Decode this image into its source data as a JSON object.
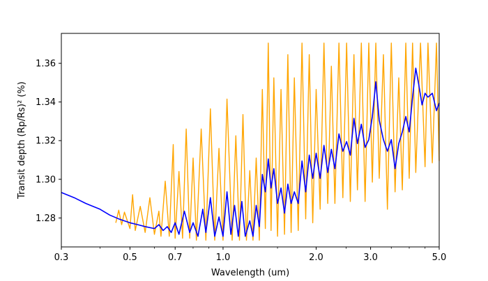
{
  "chart_data": {
    "type": "line",
    "xlabel": "Wavelength (um)",
    "ylabel": "Transit depth (Rp/Rs)² (%)",
    "xscale": "log",
    "xlim": [
      0.3,
      5.0
    ],
    "ylim": [
      1.265,
      1.3755
    ],
    "x_ticks": [
      0.3,
      0.5,
      0.7,
      1.0,
      2.0,
      3.0,
      5.0
    ],
    "x_tick_labels": [
      "0.3",
      "0.5",
      "0.7",
      "1.0",
      "2.0",
      "3.0",
      "5.0"
    ],
    "y_ticks": [
      1.28,
      1.3,
      1.32,
      1.34,
      1.36
    ],
    "y_tick_labels": [
      "1.28",
      "1.30",
      "1.32",
      "1.34",
      "1.36"
    ],
    "grid": false,
    "series": [
      {
        "color": "#ffa500",
        "points": [
          [
            0.45,
            1.2775
          ],
          [
            0.46,
            1.284
          ],
          [
            0.47,
            1.2765
          ],
          [
            0.48,
            1.283
          ],
          [
            0.5,
            1.2745
          ],
          [
            0.51,
            1.292
          ],
          [
            0.52,
            1.2735
          ],
          [
            0.54,
            1.286
          ],
          [
            0.56,
            1.2725
          ],
          [
            0.58,
            1.2905
          ],
          [
            0.6,
            1.2715
          ],
          [
            0.62,
            1.2835
          ],
          [
            0.63,
            1.2705
          ],
          [
            0.65,
            1.299
          ],
          [
            0.67,
            1.2705
          ],
          [
            0.69,
            1.318
          ],
          [
            0.7,
            1.2695
          ],
          [
            0.72,
            1.304
          ],
          [
            0.74,
            1.2695
          ],
          [
            0.76,
            1.326
          ],
          [
            0.78,
            1.2695
          ],
          [
            0.8,
            1.311
          ],
          [
            0.82,
            1.2685
          ],
          [
            0.85,
            1.326
          ],
          [
            0.88,
            1.2685
          ],
          [
            0.91,
            1.3365
          ],
          [
            0.94,
            1.2685
          ],
          [
            0.97,
            1.316
          ],
          [
            1.0,
            1.2685
          ],
          [
            1.03,
            1.3415
          ],
          [
            1.07,
            1.2685
          ],
          [
            1.1,
            1.3225
          ],
          [
            1.13,
            1.2685
          ],
          [
            1.16,
            1.3335
          ],
          [
            1.19,
            1.2685
          ],
          [
            1.22,
            1.3045
          ],
          [
            1.25,
            1.2685
          ],
          [
            1.28,
            1.311
          ],
          [
            1.31,
            1.2685
          ],
          [
            1.34,
            1.3465
          ],
          [
            1.37,
            1.2745
          ],
          [
            1.4,
            1.3705
          ],
          [
            1.43,
            1.2735
          ],
          [
            1.46,
            1.3525
          ],
          [
            1.5,
            1.2705
          ],
          [
            1.54,
            1.3465
          ],
          [
            1.58,
            1.2715
          ],
          [
            1.62,
            1.3645
          ],
          [
            1.66,
            1.2725
          ],
          [
            1.7,
            1.3525
          ],
          [
            1.75,
            1.2735
          ],
          [
            1.8,
            1.3705
          ],
          [
            1.85,
            1.2795
          ],
          [
            1.9,
            1.3645
          ],
          [
            1.95,
            1.2775
          ],
          [
            2.0,
            1.3465
          ],
          [
            2.06,
            1.2845
          ],
          [
            2.12,
            1.3705
          ],
          [
            2.18,
            1.2875
          ],
          [
            2.24,
            1.3585
          ],
          [
            2.3,
            1.2875
          ],
          [
            2.37,
            1.3705
          ],
          [
            2.44,
            1.2905
          ],
          [
            2.51,
            1.3705
          ],
          [
            2.58,
            1.2885
          ],
          [
            2.65,
            1.3645
          ],
          [
            2.72,
            1.2945
          ],
          [
            2.8,
            1.3705
          ],
          [
            2.88,
            1.2885
          ],
          [
            2.96,
            1.3705
          ],
          [
            3.04,
            1.2985
          ],
          [
            3.12,
            1.3705
          ],
          [
            3.2,
            1.3005
          ],
          [
            3.3,
            1.3645
          ],
          [
            3.4,
            1.2845
          ],
          [
            3.5,
            1.3705
          ],
          [
            3.6,
            1.2935
          ],
          [
            3.7,
            1.3525
          ],
          [
            3.8,
            1.2945
          ],
          [
            3.9,
            1.3705
          ],
          [
            4.0,
            1.3005
          ],
          [
            4.1,
            1.3705
          ],
          [
            4.2,
            1.3035
          ],
          [
            4.35,
            1.3705
          ],
          [
            4.5,
            1.3065
          ],
          [
            4.6,
            1.3705
          ],
          [
            4.75,
            1.3085
          ],
          [
            4.9,
            1.3705
          ],
          [
            5.0,
            1.3095
          ]
        ]
      },
      {
        "color": "#0000ff",
        "points": [
          [
            0.3,
            1.2932
          ],
          [
            0.33,
            1.2905
          ],
          [
            0.36,
            1.2875
          ],
          [
            0.4,
            1.2845
          ],
          [
            0.43,
            1.2815
          ],
          [
            0.46,
            1.2795
          ],
          [
            0.5,
            1.2775
          ],
          [
            0.53,
            1.2765
          ],
          [
            0.56,
            1.2755
          ],
          [
            0.6,
            1.2745
          ],
          [
            0.62,
            1.2765
          ],
          [
            0.64,
            1.2735
          ],
          [
            0.66,
            1.2755
          ],
          [
            0.68,
            1.2725
          ],
          [
            0.7,
            1.2775
          ],
          [
            0.72,
            1.2715
          ],
          [
            0.75,
            1.2835
          ],
          [
            0.78,
            1.2725
          ],
          [
            0.8,
            1.2775
          ],
          [
            0.83,
            1.2705
          ],
          [
            0.86,
            1.2845
          ],
          [
            0.88,
            1.2725
          ],
          [
            0.91,
            1.2905
          ],
          [
            0.94,
            1.2705
          ],
          [
            0.97,
            1.2805
          ],
          [
            1.0,
            1.2705
          ],
          [
            1.03,
            1.2935
          ],
          [
            1.06,
            1.2715
          ],
          [
            1.09,
            1.2865
          ],
          [
            1.12,
            1.2705
          ],
          [
            1.15,
            1.2885
          ],
          [
            1.18,
            1.2705
          ],
          [
            1.22,
            1.2785
          ],
          [
            1.25,
            1.2705
          ],
          [
            1.28,
            1.2865
          ],
          [
            1.31,
            1.2755
          ],
          [
            1.34,
            1.3025
          ],
          [
            1.37,
            1.2935
          ],
          [
            1.4,
            1.3105
          ],
          [
            1.43,
            1.2955
          ],
          [
            1.46,
            1.3055
          ],
          [
            1.5,
            1.2875
          ],
          [
            1.54,
            1.2955
          ],
          [
            1.58,
            1.2825
          ],
          [
            1.62,
            1.2975
          ],
          [
            1.66,
            1.2875
          ],
          [
            1.7,
            1.2935
          ],
          [
            1.75,
            1.2875
          ],
          [
            1.8,
            1.3095
          ],
          [
            1.85,
            1.2935
          ],
          [
            1.9,
            1.3125
          ],
          [
            1.95,
            1.3005
          ],
          [
            2.0,
            1.3135
          ],
          [
            2.06,
            1.3005
          ],
          [
            2.12,
            1.3175
          ],
          [
            2.18,
            1.3035
          ],
          [
            2.24,
            1.3155
          ],
          [
            2.3,
            1.3055
          ],
          [
            2.37,
            1.3235
          ],
          [
            2.44,
            1.3145
          ],
          [
            2.51,
            1.3195
          ],
          [
            2.58,
            1.3125
          ],
          [
            2.65,
            1.3315
          ],
          [
            2.72,
            1.3185
          ],
          [
            2.8,
            1.3285
          ],
          [
            2.88,
            1.3165
          ],
          [
            2.96,
            1.3205
          ],
          [
            3.04,
            1.3325
          ],
          [
            3.12,
            1.3505
          ],
          [
            3.2,
            1.3305
          ],
          [
            3.3,
            1.3205
          ],
          [
            3.4,
            1.3145
          ],
          [
            3.5,
            1.3205
          ],
          [
            3.6,
            1.3055
          ],
          [
            3.7,
            1.3185
          ],
          [
            3.8,
            1.3245
          ],
          [
            3.9,
            1.3325
          ],
          [
            4.0,
            1.3245
          ],
          [
            4.1,
            1.3425
          ],
          [
            4.2,
            1.3575
          ],
          [
            4.3,
            1.3485
          ],
          [
            4.4,
            1.3385
          ],
          [
            4.5,
            1.3445
          ],
          [
            4.6,
            1.3425
          ],
          [
            4.75,
            1.3445
          ],
          [
            4.9,
            1.3355
          ],
          [
            5.0,
            1.3395
          ]
        ]
      }
    ]
  }
}
